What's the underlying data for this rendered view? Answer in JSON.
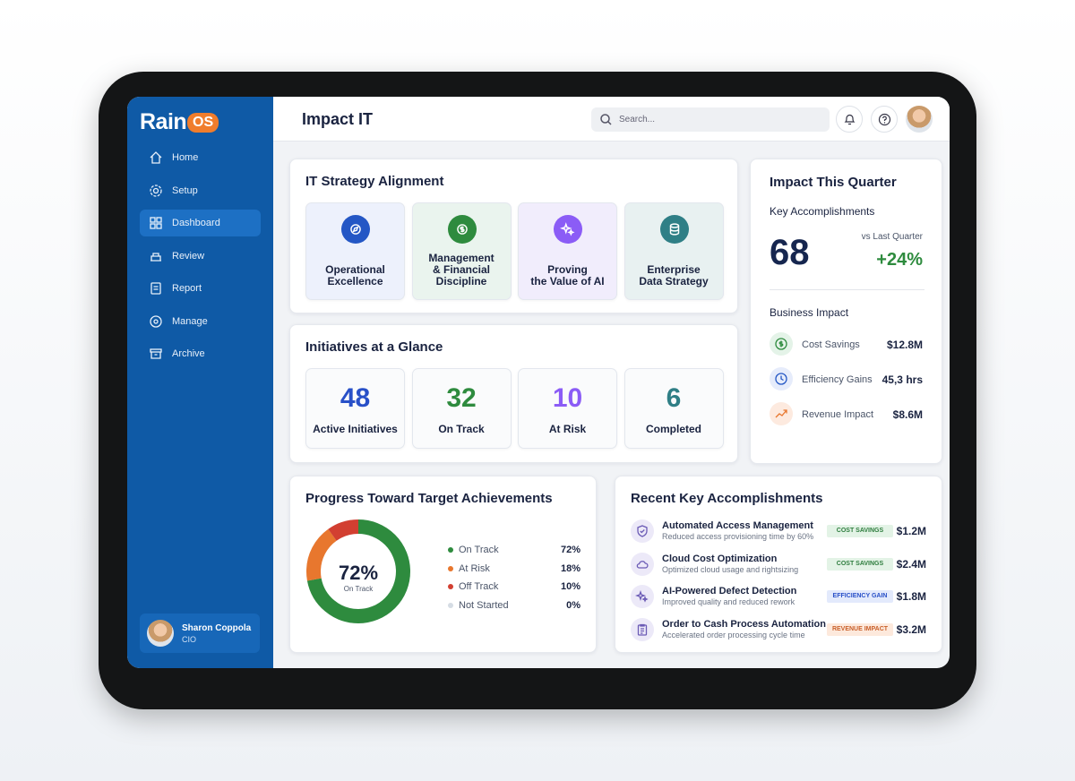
{
  "sidebar": {
    "logo": "Rain",
    "logo_badge": "OS",
    "nav": [
      "Home",
      "Setup",
      "Dashboard",
      "Review",
      "Report",
      "Manage",
      "Archive"
    ],
    "user": {
      "name": "Sharon Coppola",
      "role": "CIO"
    }
  },
  "header": {
    "title": "Impact IT",
    "search_placeholder": "Search..."
  },
  "strategy": {
    "title": "IT Strategy Alignment",
    "cards": [
      "Operational\nExcellence",
      "Management\n& Financial\nDiscipline",
      "Proving\nthe Value of AI",
      "Enterprise\nData Strategy"
    ]
  },
  "initiatives": {
    "title": "Initiatives at a Glance",
    "items": [
      {
        "value": 48,
        "label": "Active Initiatives"
      },
      {
        "value": 32,
        "label": "On Track"
      },
      {
        "value": 10,
        "label": "At Risk"
      },
      {
        "value": 6,
        "label": "Completed"
      }
    ]
  },
  "impact": {
    "title": "Impact This Quarter",
    "key_label": "Key Accomplishments",
    "key_value": 68,
    "comparison_label": "vs Last Quarter",
    "change": "+24%",
    "business_title": "Business Impact",
    "items": [
      {
        "label": "Cost Savings",
        "value": "$12.8M"
      },
      {
        "label": "Efficiency Gains",
        "value": "45,3 hrs"
      },
      {
        "label": "Revenue Impact",
        "value": "$8.6M"
      }
    ]
  },
  "progress": {
    "title": "Progress Toward Target Achievements",
    "center_label": "On Track",
    "segments": [
      {
        "name": "On Track",
        "value": 72,
        "label": "72%",
        "color": "#2e8b3e"
      },
      {
        "name": "At Risk",
        "value": 18,
        "label": "18%",
        "color": "#e8772e"
      },
      {
        "name": "Off Track",
        "value": 10,
        "label": "10%",
        "color": "#d23f31"
      },
      {
        "name": "Not Started",
        "value": 0,
        "label": "0%",
        "color": "#d5dce4"
      }
    ]
  },
  "accomplishments": {
    "title": "Recent Key Accomplishments",
    "items": [
      {
        "title": "Automated Access Management",
        "subtitle": "Reduced access provisioning time by 60%",
        "tag": "COST SAVINGS",
        "value": "$1.2M"
      },
      {
        "title": "Cloud Cost Optimization",
        "subtitle": "Optimized cloud usage and rightsizing",
        "tag": "COST SAVINGS",
        "value": "$2.4M"
      },
      {
        "title": "AI-Powered Defect Detection",
        "subtitle": "Improved quality and reduced rework",
        "tag": "EFFICIENCY GAIN",
        "value": "$1.8M"
      },
      {
        "title": "Order to Cash Process Automation",
        "subtitle": "Accelerated order processing cycle time",
        "tag": "REVENUE IMPACT",
        "value": "$3.2M"
      }
    ]
  }
}
